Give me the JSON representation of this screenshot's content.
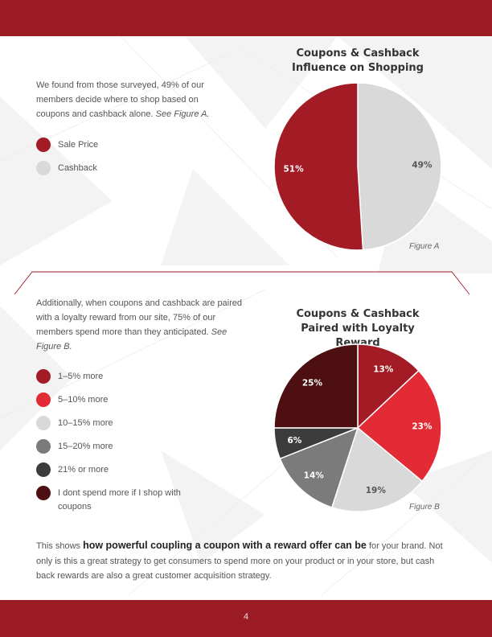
{
  "page_number": "4",
  "section_a": {
    "intro_text": "We found from those surveyed, 49% of our members decide where to shop based on coupons and cashback alone.",
    "figure_ref": "See Figure A.",
    "figure_label": "Figure A",
    "legend": [
      {
        "label": "Sale Price",
        "color": "#a31b25"
      },
      {
        "label": "Cashback",
        "color": "#d9d9d9"
      }
    ]
  },
  "section_b": {
    "intro_text": "Additionally, when coupons and cashback are paired with a loyalty reward from our site,  75% of our members spend more than they anticipated.",
    "figure_ref": "See Figure B.",
    "figure_label": "Figure B",
    "legend": [
      {
        "label": "1–5% more",
        "color": "#a31b25"
      },
      {
        "label": "5–10% more",
        "color": "#e32b35"
      },
      {
        "label": "10–15% more",
        "color": "#d9d9d9"
      },
      {
        "label": "15–20% more",
        "color": "#7a7b7a"
      },
      {
        "label": "21% or more",
        "color": "#3c3c3c"
      },
      {
        "label": "I dont spend more if I shop with coupons",
        "color": "#4d0f12"
      }
    ]
  },
  "summary": {
    "pre": "This shows ",
    "bold": "how powerful coupling a coupon with a reward offer can be",
    "post": " for your brand. Not only is this a great strategy to get consumers to spend more on your product or in your store, but cash back rewards are also a great customer acquisition strategy."
  },
  "chart_data": [
    {
      "type": "pie",
      "title": "Coupons & Cashback Influence on Shopping",
      "slices": [
        {
          "label": "Cashback",
          "display": "49%",
          "value": 49,
          "color": "#d9d9d9"
        },
        {
          "label": "Sale Price",
          "display": "51%",
          "value": 51,
          "color": "#a31b25"
        }
      ]
    },
    {
      "type": "pie",
      "title": "Coupons & Cashback Paired with Loyalty Reward",
      "slices": [
        {
          "label": "1–5% more",
          "display": "13%",
          "value": 13,
          "color": "#a31b25"
        },
        {
          "label": "5–10% more",
          "display": "23%",
          "value": 23,
          "color": "#e32b35"
        },
        {
          "label": "10–15% more",
          "display": "19%",
          "value": 19,
          "color": "#d9d9d9"
        },
        {
          "label": "15–20% more",
          "display": "14%",
          "value": 14,
          "color": "#7a7b7a"
        },
        {
          "label": "21% or more",
          "display": "6%",
          "value": 6,
          "color": "#3c3c3c"
        },
        {
          "label": "I dont spend more if I shop with coupons",
          "display": "25%",
          "value": 25,
          "color": "#4d0f12"
        }
      ]
    }
  ]
}
